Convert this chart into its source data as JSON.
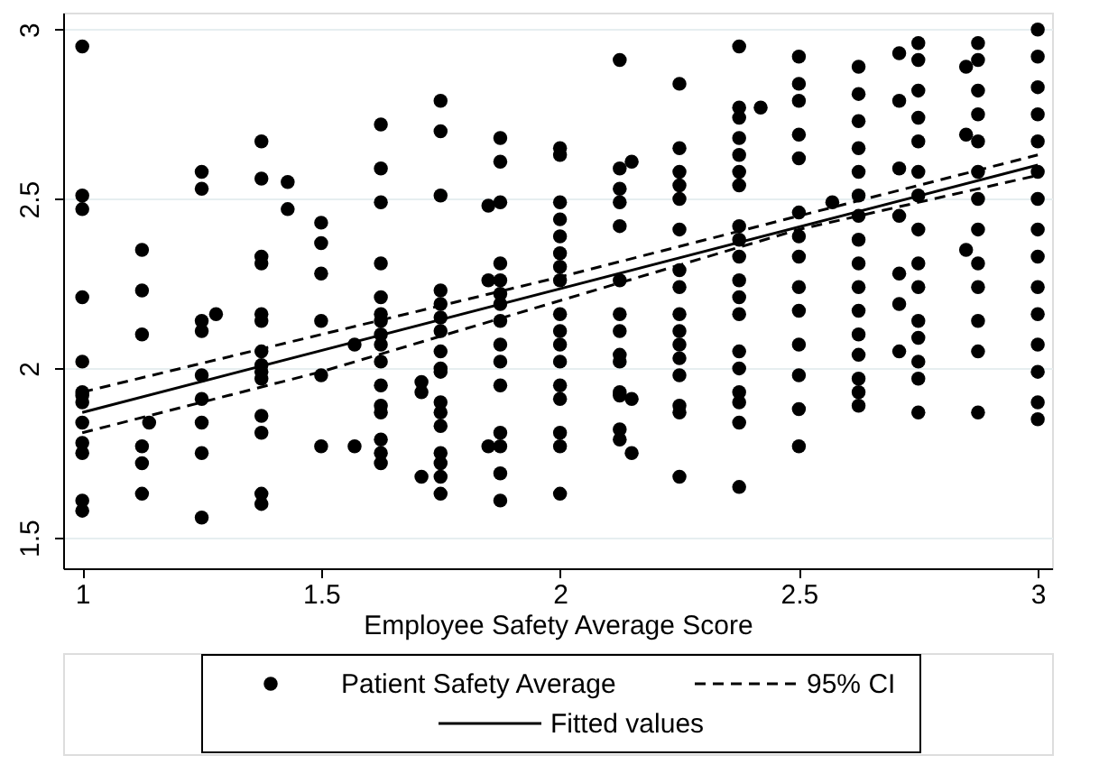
{
  "chart_data": {
    "type": "scatter",
    "xlabel": "Employee Safety Average Score",
    "xlim": [
      0.96,
      3.03
    ],
    "ylim": [
      1.41,
      3.05
    ],
    "xticks": [
      1,
      1.5,
      2,
      2.5,
      3
    ],
    "yticks": [
      1.5,
      2,
      2.5,
      3
    ],
    "grid": "y",
    "legend": "bottom",
    "series": [
      {
        "name": "Patient Safety Average",
        "marker": "circle",
        "color": "#000000",
        "x": [
          1,
          1,
          1,
          1,
          1,
          1,
          1,
          1,
          1,
          1,
          1,
          1,
          1,
          1.125,
          1.125,
          1.125,
          1.125,
          1.125,
          1.125,
          1.14,
          1.25,
          1.25,
          1.25,
          1.25,
          1.25,
          1.25,
          1.25,
          1.25,
          1.25,
          1.28,
          1.375,
          1.375,
          1.375,
          1.375,
          1.375,
          1.375,
          1.375,
          1.375,
          1.375,
          1.375,
          1.375,
          1.375,
          1.375,
          1.375,
          1.43,
          1.43,
          1.5,
          1.5,
          1.5,
          1.5,
          1.5,
          1.5,
          1.57,
          1.57,
          1.625,
          1.625,
          1.625,
          1.625,
          1.625,
          1.625,
          1.625,
          1.625,
          1.625,
          1.625,
          1.625,
          1.625,
          1.625,
          1.625,
          1.625,
          1.625,
          1.71,
          1.71,
          1.71,
          1.75,
          1.75,
          1.75,
          1.75,
          1.75,
          1.75,
          1.75,
          1.75,
          1.75,
          1.75,
          1.75,
          1.75,
          1.75,
          1.75,
          1.75,
          1.75,
          1.75,
          1.85,
          1.85,
          1.85,
          1.875,
          1.875,
          1.875,
          1.875,
          1.875,
          1.875,
          1.875,
          1.875,
          1.875,
          1.875,
          1.875,
          1.875,
          1.875,
          1.875,
          1.875,
          2,
          2,
          2,
          2,
          2,
          2,
          2,
          2,
          2,
          2,
          2,
          2,
          2,
          2,
          2,
          2,
          2,
          2.125,
          2.125,
          2.125,
          2.125,
          2.125,
          2.125,
          2.125,
          2.125,
          2.125,
          2.125,
          2.125,
          2.125,
          2.125,
          2.125,
          2.15,
          2.15,
          2.15,
          2.25,
          2.25,
          2.25,
          2.25,
          2.25,
          2.25,
          2.25,
          2.25,
          2.25,
          2.25,
          2.25,
          2.25,
          2.25,
          2.25,
          2.25,
          2.25,
          2.375,
          2.375,
          2.375,
          2.375,
          2.375,
          2.375,
          2.375,
          2.375,
          2.375,
          2.375,
          2.375,
          2.375,
          2.375,
          2.375,
          2.375,
          2.375,
          2.375,
          2.375,
          2.375,
          2.42,
          2.5,
          2.5,
          2.5,
          2.5,
          2.5,
          2.5,
          2.5,
          2.5,
          2.5,
          2.5,
          2.5,
          2.5,
          2.5,
          2.5,
          2.57,
          2.625,
          2.625,
          2.625,
          2.625,
          2.625,
          2.625,
          2.625,
          2.625,
          2.625,
          2.625,
          2.625,
          2.625,
          2.625,
          2.625,
          2.625,
          2.625,
          2.71,
          2.71,
          2.71,
          2.71,
          2.71,
          2.71,
          2.71,
          2.75,
          2.75,
          2.75,
          2.75,
          2.75,
          2.75,
          2.75,
          2.75,
          2.75,
          2.75,
          2.75,
          2.75,
          2.75,
          2.75,
          2.75,
          2.85,
          2.85,
          2.85,
          2.875,
          2.875,
          2.875,
          2.875,
          2.875,
          2.875,
          2.875,
          2.875,
          2.875,
          2.875,
          2.875,
          2.875,
          2.875,
          3,
          3,
          3,
          3,
          3,
          3,
          3,
          3,
          3,
          3,
          3,
          3,
          3,
          3,
          3
        ],
        "values": [
          2.95,
          2.51,
          2.47,
          2.21,
          2.02,
          1.93,
          1.92,
          1.9,
          1.84,
          1.78,
          1.75,
          1.61,
          1.58,
          2.35,
          2.23,
          2.1,
          1.77,
          1.72,
          1.63,
          1.84,
          2.58,
          2.53,
          2.14,
          2.11,
          1.98,
          1.91,
          1.84,
          1.75,
          1.56,
          2.16,
          2.67,
          2.56,
          2.33,
          2.31,
          2.16,
          2.14,
          2.05,
          2.01,
          1.99,
          1.97,
          1.86,
          1.81,
          1.63,
          1.6,
          2.55,
          2.47,
          2.43,
          2.37,
          2.28,
          2.14,
          1.98,
          1.77,
          2.07,
          1.77,
          2.72,
          2.59,
          2.49,
          2.31,
          2.21,
          2.16,
          2.14,
          2.1,
          2.07,
          2.02,
          1.95,
          1.89,
          1.87,
          1.79,
          1.75,
          1.72,
          1.96,
          1.93,
          1.68,
          2.79,
          2.7,
          2.51,
          2.23,
          2.19,
          2.15,
          2.11,
          2.05,
          2,
          1.99,
          1.9,
          1.87,
          1.83,
          1.75,
          1.72,
          1.68,
          1.63,
          2.48,
          2.26,
          1.77,
          2.68,
          2.61,
          2.49,
          2.31,
          2.26,
          2.22,
          2.19,
          2.14,
          2.07,
          2.02,
          1.95,
          1.81,
          1.77,
          1.69,
          1.61,
          2.65,
          2.63,
          2.49,
          2.44,
          2.39,
          2.34,
          2.3,
          2.26,
          2.16,
          2.11,
          2.07,
          2.02,
          1.95,
          1.91,
          1.81,
          1.77,
          1.63,
          2.91,
          2.59,
          2.53,
          2.49,
          2.42,
          2.26,
          2.16,
          2.11,
          2.04,
          2.02,
          1.93,
          1.92,
          1.82,
          1.79,
          2.61,
          1.91,
          1.75,
          2.84,
          2.65,
          2.58,
          2.54,
          2.5,
          2.41,
          2.29,
          2.24,
          2.16,
          2.11,
          2.07,
          2.03,
          1.98,
          1.89,
          1.87,
          1.68,
          2.95,
          2.77,
          2.74,
          2.68,
          2.63,
          2.58,
          2.54,
          2.42,
          2.38,
          2.33,
          2.26,
          2.21,
          2.16,
          2.05,
          2,
          1.93,
          1.9,
          1.84,
          1.65,
          2.77,
          2.92,
          2.84,
          2.79,
          2.69,
          2.62,
          2.46,
          2.39,
          2.33,
          2.24,
          2.17,
          2.07,
          1.98,
          1.88,
          1.77,
          2.49,
          2.89,
          2.81,
          2.73,
          2.65,
          2.58,
          2.51,
          2.45,
          2.38,
          2.31,
          2.24,
          2.17,
          2.1,
          2.04,
          1.97,
          1.93,
          1.89,
          2.93,
          2.79,
          2.59,
          2.45,
          2.28,
          2.19,
          2.05,
          2.96,
          2.91,
          2.82,
          2.74,
          2.67,
          2.58,
          2.51,
          2.41,
          2.31,
          2.24,
          2.14,
          2.09,
          2.02,
          1.97,
          1.87,
          2.89,
          2.69,
          2.35,
          2.96,
          2.91,
          2.82,
          2.75,
          2.67,
          2.58,
          2.5,
          2.41,
          2.31,
          2.24,
          2.14,
          2.05,
          1.87,
          3,
          2.92,
          2.83,
          2.75,
          2.67,
          2.58,
          2.5,
          2.41,
          2.33,
          2.24,
          2.16,
          2.07,
          1.99,
          1.9,
          1.85
        ]
      },
      {
        "name": "95% CI",
        "type": "line",
        "line_style": "dashed",
        "color": "#000000",
        "x": [
          1,
          1.5,
          2,
          2.5,
          3
        ],
        "values": [
          1.93,
          2.1,
          2.27,
          2.45,
          2.63
        ]
      },
      {
        "type": "line",
        "line_style": "dashed",
        "color": "#000000",
        "x": [
          1,
          1.5,
          2,
          2.5,
          3
        ],
        "values": [
          1.81,
          1.99,
          2.2,
          2.41,
          2.57
        ]
      },
      {
        "name": "Fitted values",
        "type": "line",
        "line_style": "solid",
        "color": "#000000",
        "x": [
          1,
          3
        ],
        "values": [
          1.87,
          2.6
        ]
      }
    ]
  }
}
